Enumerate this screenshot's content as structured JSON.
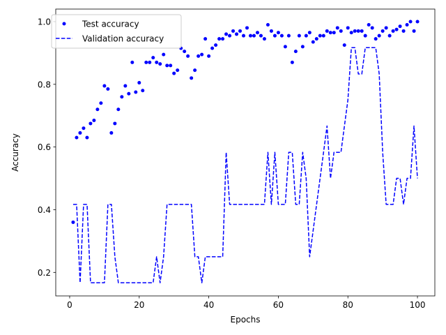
{
  "chart_data": {
    "type": "line",
    "xlabel": "Epochs",
    "ylabel": "Accuracy",
    "xlim": [
      -4,
      105
    ],
    "ylim": [
      0.125,
      1.04
    ],
    "xticks": [
      0,
      20,
      40,
      60,
      80,
      100
    ],
    "yticks": [
      0.2,
      0.4,
      0.6,
      0.8,
      1.0
    ],
    "xtick_labels": [
      "0",
      "20",
      "40",
      "60",
      "80",
      "100"
    ],
    "ytick_labels": [
      "0.2",
      "0.4",
      "0.6",
      "0.8",
      "1.0"
    ],
    "grid": false,
    "legend_position": "top-left",
    "series": [
      {
        "name": "Test accuracy",
        "style": "markers",
        "color": "#0000ff",
        "x": [
          1,
          2,
          3,
          4,
          5,
          6,
          7,
          8,
          9,
          10,
          11,
          12,
          13,
          14,
          15,
          16,
          17,
          18,
          19,
          20,
          21,
          22,
          23,
          24,
          25,
          26,
          27,
          28,
          29,
          30,
          31,
          32,
          33,
          34,
          35,
          36,
          37,
          38,
          39,
          40,
          41,
          42,
          43,
          44,
          45,
          46,
          47,
          48,
          49,
          50,
          51,
          52,
          53,
          54,
          55,
          56,
          57,
          58,
          59,
          60,
          61,
          62,
          63,
          64,
          65,
          66,
          67,
          68,
          69,
          70,
          71,
          72,
          73,
          74,
          75,
          76,
          77,
          78,
          79,
          80,
          81,
          82,
          83,
          84,
          85,
          86,
          87,
          88,
          89,
          90,
          91,
          92,
          93,
          94,
          95,
          96,
          97,
          98,
          99,
          100
        ],
        "y": [
          0.36,
          0.63,
          0.645,
          0.66,
          0.63,
          0.675,
          0.685,
          0.72,
          0.74,
          0.795,
          0.785,
          0.645,
          0.675,
          0.72,
          0.76,
          0.795,
          0.77,
          0.87,
          0.775,
          0.805,
          0.78,
          0.87,
          0.87,
          0.885,
          0.87,
          0.865,
          0.895,
          0.86,
          0.86,
          0.835,
          0.845,
          0.915,
          0.905,
          0.89,
          0.82,
          0.845,
          0.89,
          0.895,
          0.945,
          0.89,
          0.915,
          0.925,
          0.945,
          0.945,
          0.96,
          0.955,
          0.97,
          0.96,
          0.97,
          0.955,
          0.98,
          0.955,
          0.955,
          0.965,
          0.955,
          0.945,
          0.99,
          0.97,
          0.955,
          0.965,
          0.955,
          0.92,
          0.955,
          0.87,
          0.905,
          0.955,
          0.92,
          0.955,
          0.965,
          0.935,
          0.945,
          0.955,
          0.955,
          0.97,
          0.965,
          0.965,
          0.98,
          0.97,
          0.925,
          0.98,
          0.965,
          0.97,
          0.97,
          0.97,
          0.955,
          0.99,
          0.98,
          0.945,
          0.955,
          0.97,
          0.98,
          0.955,
          0.97,
          0.975,
          0.985,
          0.97,
          0.99,
          1.0,
          0.97,
          1.0
        ]
      },
      {
        "name": "Validation accuracy",
        "style": "dashed",
        "color": "#0000ff",
        "x": [
          1,
          2,
          3,
          4,
          5,
          6,
          7,
          8,
          9,
          10,
          11,
          12,
          13,
          14,
          15,
          16,
          17,
          18,
          19,
          20,
          21,
          22,
          23,
          24,
          25,
          26,
          27,
          28,
          29,
          30,
          31,
          32,
          33,
          34,
          35,
          36,
          37,
          38,
          39,
          40,
          41,
          42,
          43,
          44,
          45,
          46,
          47,
          48,
          49,
          50,
          51,
          52,
          53,
          54,
          55,
          56,
          57,
          58,
          59,
          60,
          61,
          62,
          63,
          64,
          65,
          66,
          67,
          68,
          69,
          70,
          71,
          72,
          73,
          74,
          75,
          76,
          77,
          78,
          79,
          80,
          81,
          82,
          83,
          84,
          85,
          86,
          87,
          88,
          89,
          90,
          91,
          92,
          93,
          94,
          95,
          96,
          97,
          98,
          99,
          100
        ],
        "y": [
          0.417,
          0.417,
          0.167,
          0.417,
          0.417,
          0.167,
          0.167,
          0.167,
          0.167,
          0.167,
          0.417,
          0.417,
          0.25,
          0.167,
          0.167,
          0.167,
          0.167,
          0.167,
          0.167,
          0.167,
          0.167,
          0.167,
          0.167,
          0.167,
          0.25,
          0.167,
          0.25,
          0.417,
          0.417,
          0.417,
          0.417,
          0.417,
          0.417,
          0.417,
          0.417,
          0.25,
          0.25,
          0.167,
          0.25,
          0.25,
          0.25,
          0.25,
          0.25,
          0.25,
          0.583,
          0.417,
          0.417,
          0.417,
          0.417,
          0.417,
          0.417,
          0.417,
          0.417,
          0.417,
          0.417,
          0.417,
          0.583,
          0.417,
          0.583,
          0.417,
          0.417,
          0.417,
          0.583,
          0.583,
          0.417,
          0.417,
          0.583,
          0.5,
          0.25,
          0.333,
          0.417,
          0.5,
          0.583,
          0.667,
          0.5,
          0.583,
          0.583,
          0.583,
          0.667,
          0.75,
          0.917,
          0.917,
          0.833,
          0.833,
          0.917,
          0.917,
          0.917,
          0.917,
          0.833,
          0.583,
          0.417,
          0.417,
          0.417,
          0.5,
          0.5,
          0.417,
          0.5,
          0.5,
          0.667,
          0.5
        ]
      }
    ]
  }
}
